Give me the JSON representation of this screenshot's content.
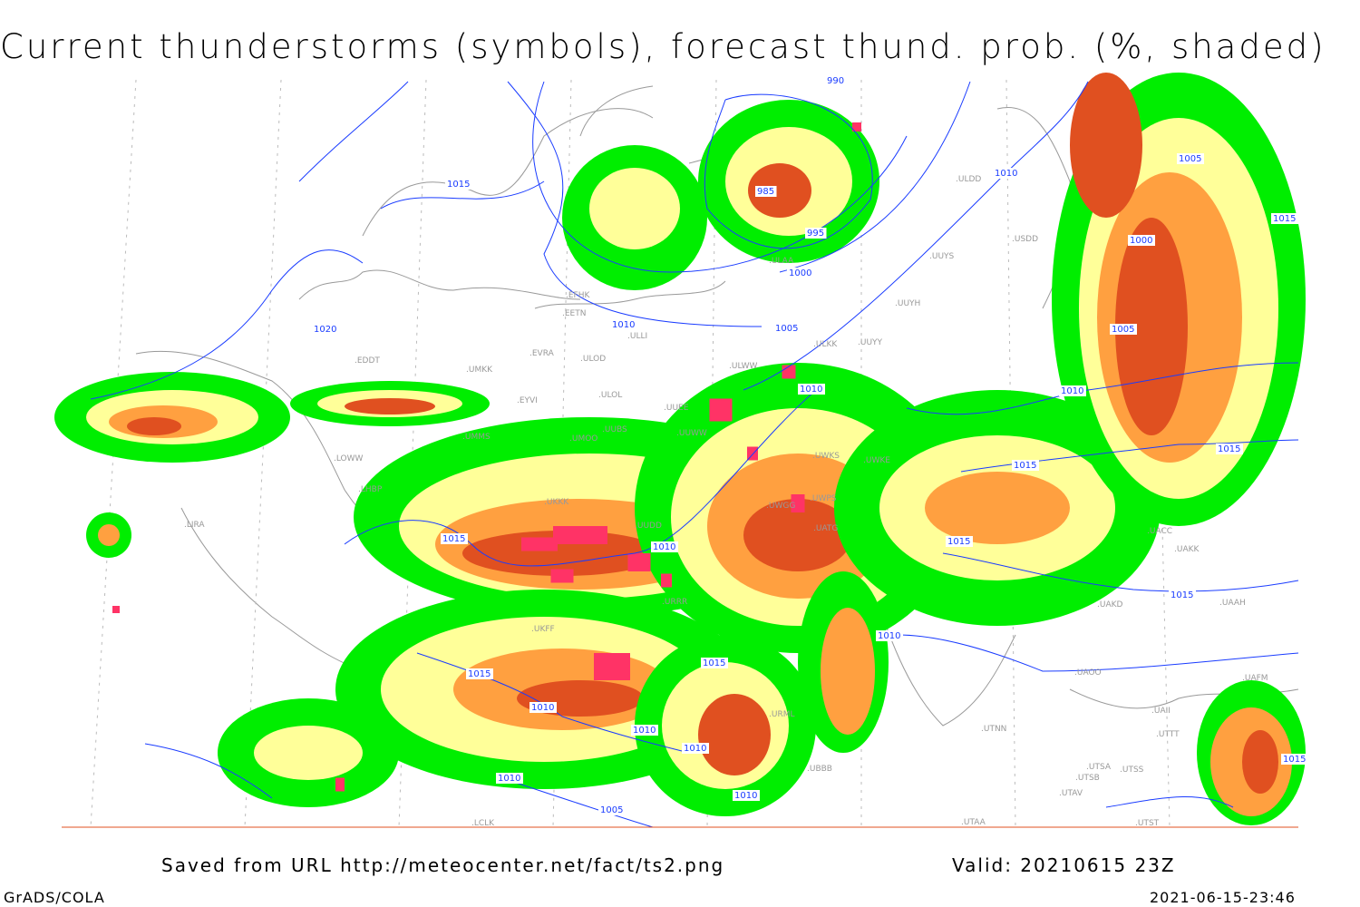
{
  "title": "Current thunderstorms (symbols), forecast thund. prob. (%, shaded)",
  "footer": {
    "source": "Saved from URL http://meteocenter.net/fact/ts2.png",
    "valid": "Valid: 20210615 23Z",
    "software": "GrADS/COLA",
    "timestamp": "2021-06-15-23:46"
  },
  "colors": {
    "low_prob": "#00ee00",
    "mid_prob": "#ffff99",
    "high_prob": "#ffa040",
    "very_high_prob": "#e05020",
    "thunderstorm_symbol": "#ff3366",
    "isobar": "#1a3cff",
    "coastline": "#999999"
  },
  "isobar_labels": [
    "990",
    "985",
    "995",
    "1000",
    "1005",
    "1010",
    "1015",
    "1020",
    "1010",
    "1005",
    "1000",
    "1010",
    "1015",
    "1015",
    "1010",
    "1010",
    "1015",
    "1015",
    "1010",
    "1010",
    "1010",
    "1010",
    "1010",
    "1005",
    "1005",
    "1015",
    "1015",
    "1015",
    "1010",
    "1015",
    "1015"
  ],
  "station_labels": [
    "EFHK",
    "EETN",
    "ULLI",
    "ULOD",
    "ULOL",
    "UUEE",
    "UUWW",
    "ULWW",
    "ULKK",
    "UUYY",
    "UUYH",
    "UUYS",
    "ULAA",
    "ULDD",
    "USDD",
    "EVRA",
    "UMKK",
    "EYVI",
    "UMMS",
    "UUBS",
    "UMOO",
    "EDDT",
    "LOWW",
    "LHBP",
    "LIRA",
    "UKKK",
    "UUDD",
    "UWGG",
    "UWKS",
    "UWKE",
    "UWPS",
    "UATG",
    "UACC",
    "UAKK",
    "UAKD",
    "UAAH",
    "UAFM",
    "UTTT",
    "UTSS",
    "UTSA",
    "UTSB",
    "UTAV",
    "UTAA",
    "UTST",
    "UTNN",
    "UBBB",
    "URML",
    "URRR",
    "UKFF",
    "LCLK",
    "UAII",
    "UAOO"
  ]
}
